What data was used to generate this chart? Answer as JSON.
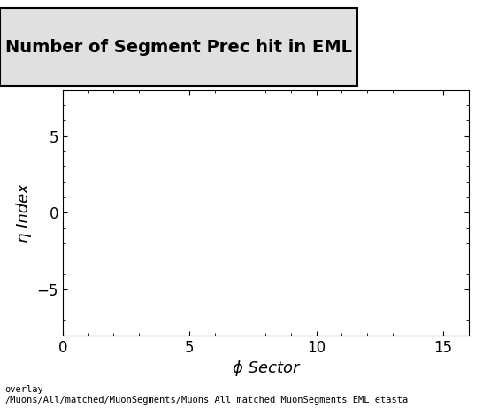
{
  "title": "Number of Segment Prec hit in EML",
  "xlabel": "ϕ Sector",
  "ylabel": "η Index",
  "xlim": [
    0,
    16
  ],
  "ylim": [
    -8,
    8
  ],
  "xticks": [
    0,
    5,
    10,
    15
  ],
  "yticks": [
    -5,
    0,
    5
  ],
  "background_color": "#ffffff",
  "plot_bg_color": "#ffffff",
  "title_fontsize": 14,
  "label_fontsize": 13,
  "tick_fontsize": 12,
  "footer_text": "overlay\n/Muons/All/matched/MuonSegments/Muons_All_matched_MuonSegments_EML_etasta",
  "footer_fontsize": 7.5,
  "title_box_color": "#e0e0e0"
}
